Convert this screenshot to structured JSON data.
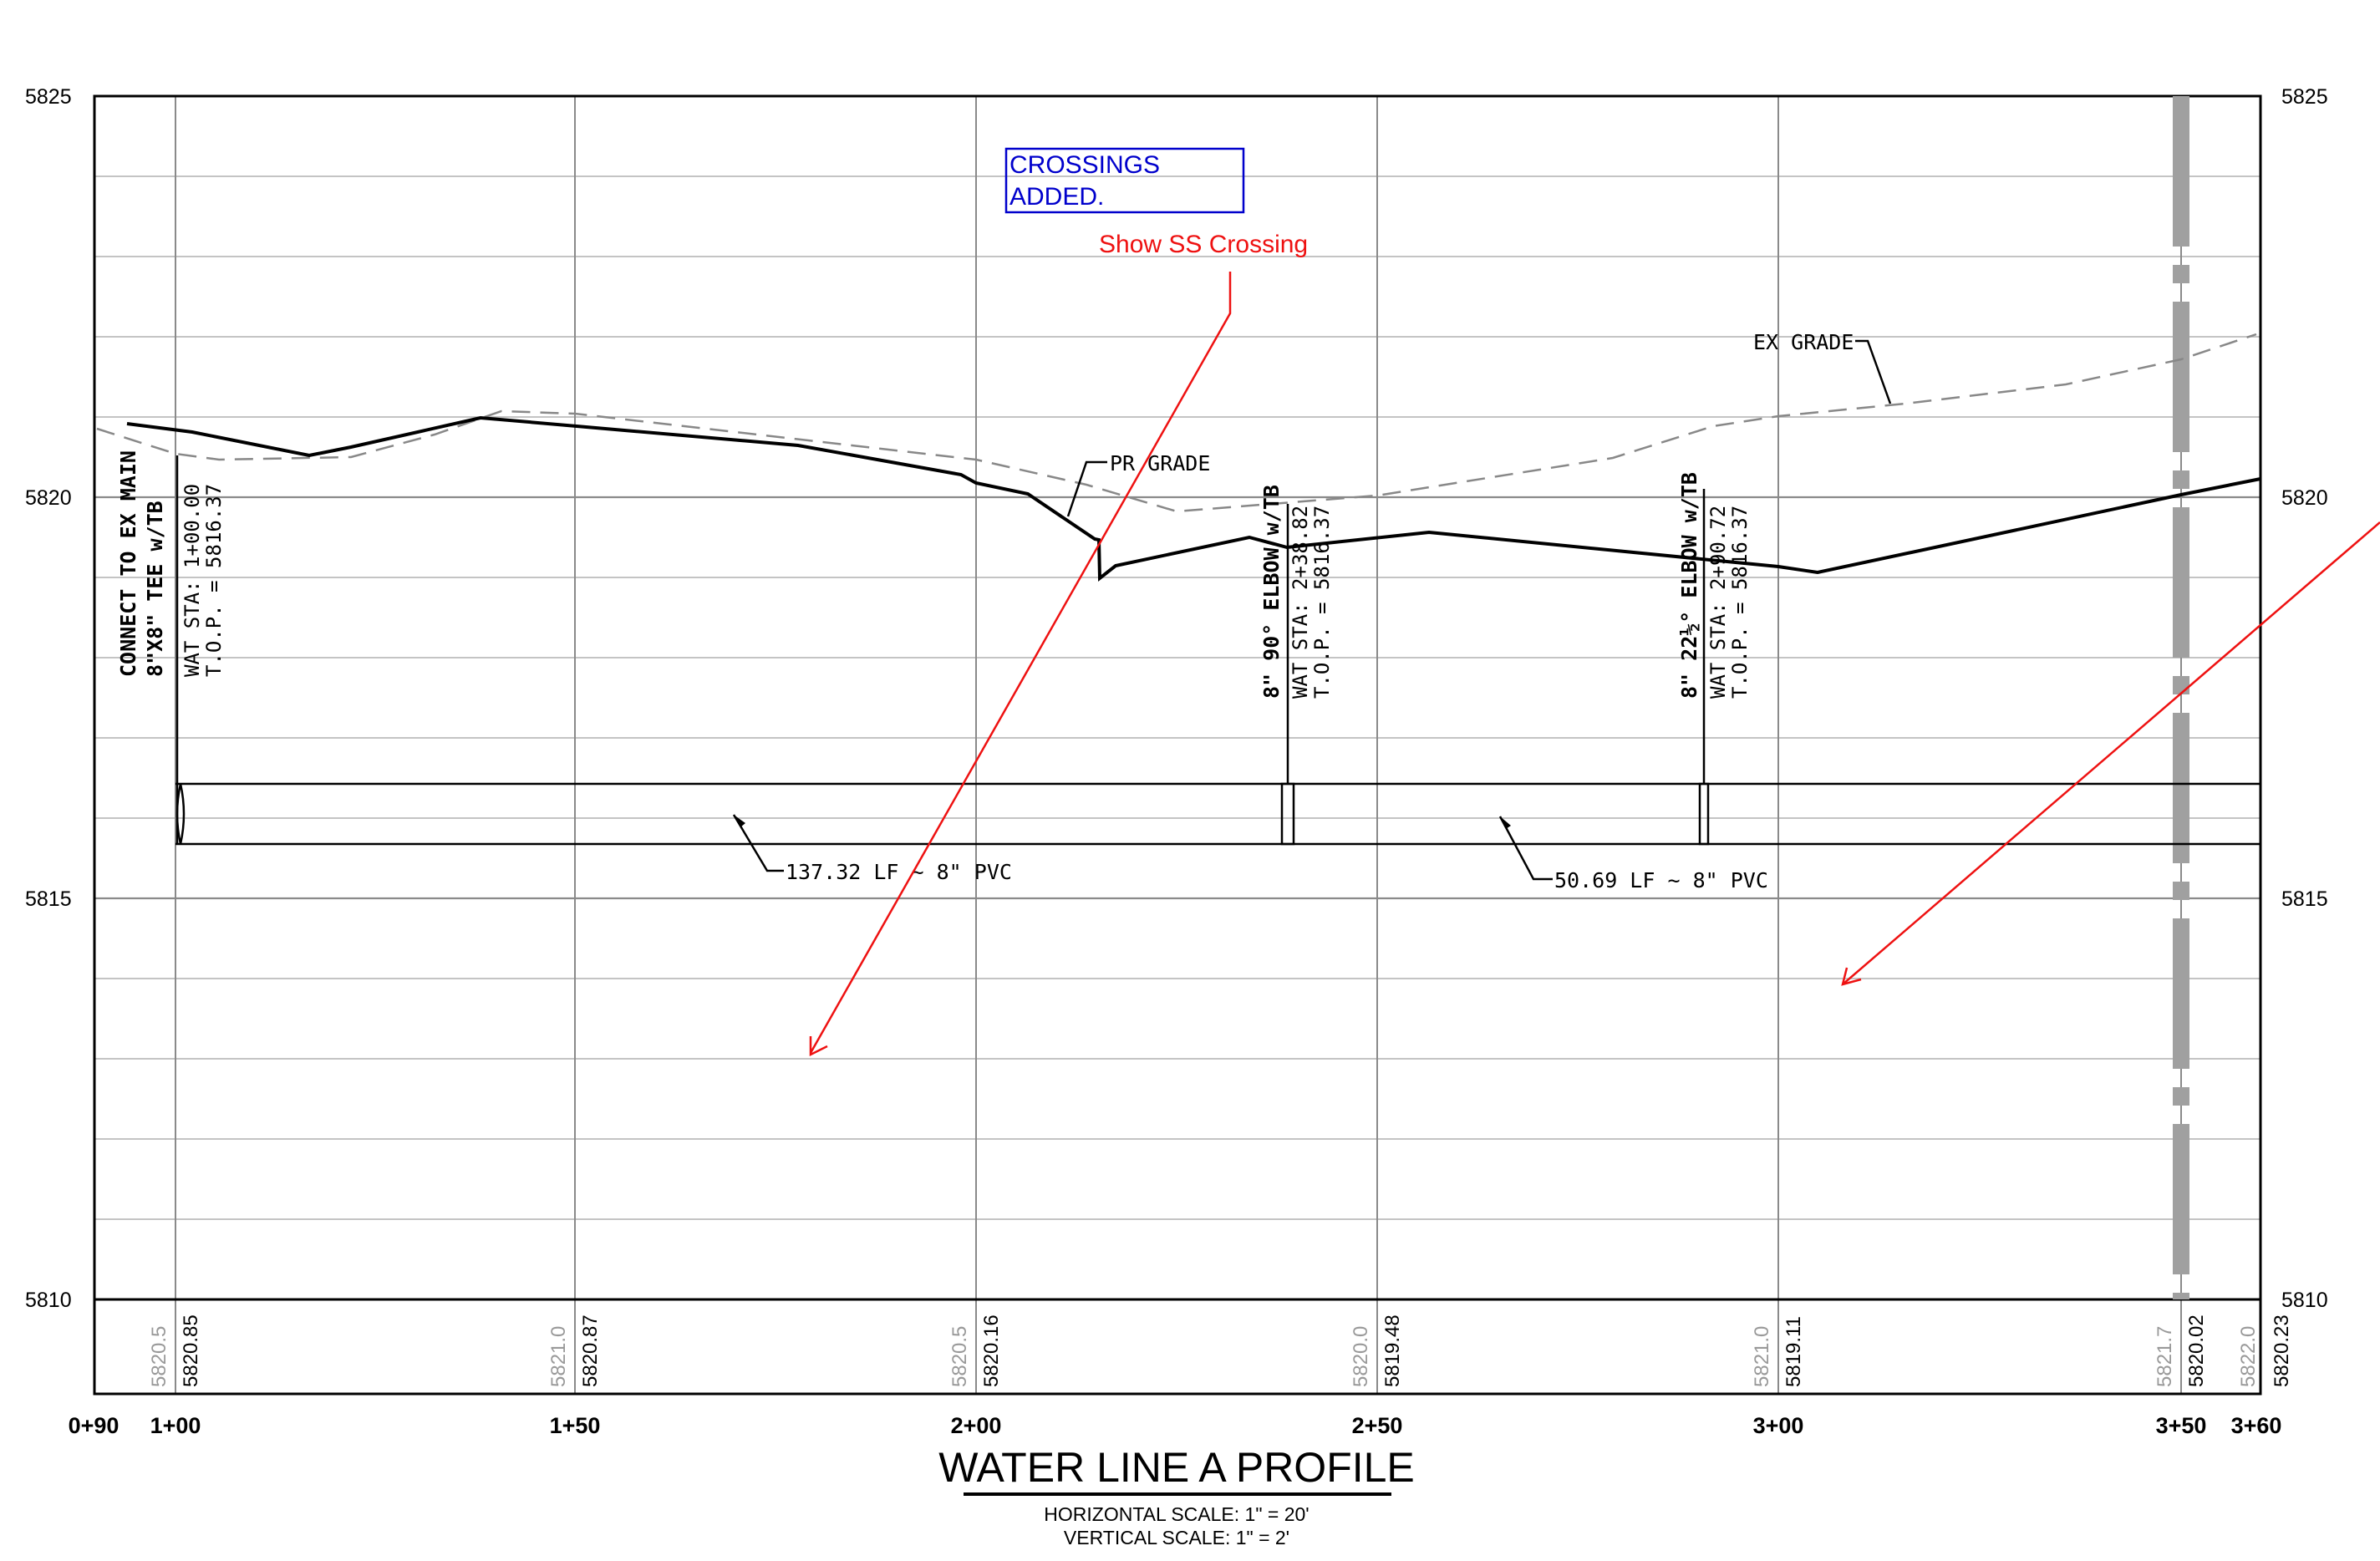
{
  "title": "WATER LINE A PROFILE",
  "scale_notes": {
    "horizontal": "HORIZONTAL SCALE:  1\" = 20'",
    "vertical": "VERTICAL SCALE: 1\" = 2'"
  },
  "elevation_labels": [
    "5825",
    "5820",
    "5815",
    "5810"
  ],
  "station_labels": [
    "0+90",
    "1+00",
    "1+50",
    "2+00",
    "2+50",
    "3+00",
    "3+50",
    "3+60"
  ],
  "bottom_elevations": [
    {
      "existing": "5820.5",
      "proposed": "5820.85"
    },
    {
      "existing": "5821.0",
      "proposed": "5820.87"
    },
    {
      "existing": "5820.5",
      "proposed": "5820.16"
    },
    {
      "existing": "5820.0",
      "proposed": "5819.48"
    },
    {
      "existing": "5821.0",
      "proposed": "5819.11"
    },
    {
      "existing": "5821.7",
      "proposed": "5820.02"
    },
    {
      "existing": "5822.0",
      "proposed": "5820.23"
    }
  ],
  "grade_labels": {
    "existing": "EX GRADE",
    "proposed": "PR GRADE"
  },
  "fittings": [
    {
      "name_line1": "CONNECT TO EX MAIN",
      "name_line2": "8\"X8\" TEE  w/TB",
      "sta": "WAT STA:  1+00.00",
      "top": "T.O.P. = 5816.37"
    },
    {
      "name_line1": "8\" 90° ELBOW w/TB",
      "name_line2": "",
      "sta": "WAT STA:  2+38.82",
      "top": "T.O.P. = 5816.37"
    },
    {
      "name_line1": "8\" 22½° ELBOW  w/TB",
      "name_line2": "",
      "sta": "WAT STA:  2+90.72",
      "top": "T.O.P. = 5816.37"
    }
  ],
  "pipe_labels": [
    "137.32 LF ~ 8\" PVC",
    "50.69 LF ~ 8\" PVC"
  ],
  "markups": {
    "crossings_box": [
      "CROSSINGS",
      "ADDED."
    ],
    "ss_crossing": "Show SS Crossing",
    "crossings_color": "#0000cc",
    "ss_color": "#ee1111"
  },
  "colors": {
    "grid": "#999999",
    "frame": "#000000",
    "existing_grade": "#888888",
    "proposed_grade": "#000000",
    "crossing_line": "#a0a0a0"
  }
}
